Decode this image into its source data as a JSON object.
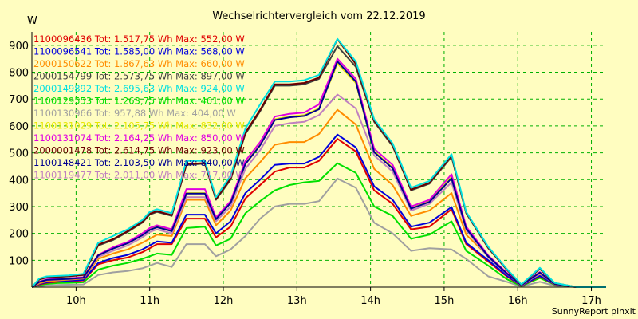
{
  "chart_data": {
    "type": "line",
    "title": "Wechselrichtervergleich vom 22.12.2019",
    "ylabel": "W",
    "xlabel": "",
    "ylim": [
      0,
      950
    ],
    "xlim": [
      9.4,
      17.2
    ],
    "yticks": [
      100,
      200,
      300,
      400,
      500,
      600,
      700,
      800,
      900
    ],
    "xticks": [
      {
        "v": 10,
        "label": "10h"
      },
      {
        "v": 11,
        "label": "11h"
      },
      {
        "v": 12,
        "label": "12h"
      },
      {
        "v": 13,
        "label": "13h"
      },
      {
        "v": 14,
        "label": "14h"
      },
      {
        "v": 15,
        "label": "15h"
      },
      {
        "v": 16,
        "label": "16h"
      },
      {
        "v": 17,
        "label": "17h"
      }
    ],
    "grid": true,
    "x": [
      9.4,
      9.5,
      9.6,
      9.75,
      9.9,
      10.1,
      10.3,
      10.5,
      10.7,
      10.9,
      11.0,
      11.1,
      11.3,
      11.5,
      11.75,
      11.9,
      12.1,
      12.3,
      12.5,
      12.7,
      12.9,
      13.1,
      13.3,
      13.55,
      13.8,
      14.05,
      14.3,
      14.55,
      14.8,
      15.1,
      15.3,
      15.6,
      15.85,
      16.05,
      16.3,
      16.5,
      16.8,
      17.0,
      17.2
    ],
    "series": [
      {
        "name": "1100096436",
        "total": "Tot: 1.517,75 Wh",
        "max": "Max: 552,00 W",
        "color": "#e00000",
        "values": [
          0,
          10,
          16,
          20,
          22,
          25,
          85,
          100,
          110,
          130,
          145,
          160,
          160,
          255,
          255,
          185,
          225,
          330,
          380,
          430,
          445,
          445,
          470,
          552,
          505,
          360,
          310,
          215,
          225,
          290,
          160,
          95,
          40,
          5,
          40,
          10,
          0,
          0,
          0
        ]
      },
      {
        "name": "1100096541",
        "total": "Tot: 1.585,00 Wh",
        "max": "Max: 568,00 W",
        "color": "#0000dd",
        "values": [
          0,
          12,
          18,
          22,
          24,
          27,
          90,
          108,
          120,
          140,
          155,
          170,
          165,
          270,
          270,
          200,
          245,
          350,
          400,
          455,
          460,
          460,
          485,
          568,
          520,
          375,
          325,
          225,
          240,
          298,
          165,
          100,
          43,
          6,
          42,
          11,
          0,
          0,
          0
        ]
      },
      {
        "name": "2000150622",
        "total": "Tot: 1.867,63 Wh",
        "max": "Max: 660,00 W",
        "color": "#ff8c00",
        "values": [
          0,
          14,
          21,
          25,
          28,
          32,
          105,
          125,
          140,
          165,
          180,
          195,
          190,
          325,
          325,
          230,
          285,
          405,
          465,
          530,
          540,
          540,
          570,
          660,
          605,
          440,
          380,
          265,
          285,
          350,
          195,
          115,
          50,
          7,
          50,
          13,
          0,
          0,
          0
        ]
      },
      {
        "name": "2000154799",
        "total": "Tot: 2.573,75 Wh",
        "max": "Max: 897,00 W",
        "color": "#404040",
        "values": [
          0,
          28,
          36,
          38,
          40,
          45,
          155,
          175,
          205,
          240,
          270,
          280,
          265,
          455,
          460,
          325,
          400,
          570,
          655,
          750,
          750,
          755,
          775,
          897,
          820,
          615,
          525,
          360,
          385,
          485,
          275,
          145,
          65,
          9,
          68,
          15,
          0,
          0,
          0
        ]
      },
      {
        "name": "2000149892",
        "total": "Tot: 2.695,63 Wh",
        "max": "Max: 924,00 W",
        "color": "#00e0e0",
        "values": [
          0,
          32,
          40,
          42,
          44,
          50,
          165,
          190,
          215,
          250,
          280,
          290,
          275,
          470,
          470,
          335,
          415,
          590,
          680,
          765,
          765,
          770,
          790,
          924,
          840,
          625,
          535,
          370,
          395,
          495,
          280,
          150,
          68,
          10,
          72,
          16,
          0,
          0,
          0
        ]
      },
      {
        "name": "1100129553",
        "total": "Tot: 1.263,75 Wh",
        "max": "Max: 461,00 W",
        "color": "#00e000",
        "values": [
          0,
          8,
          12,
          15,
          16,
          18,
          65,
          80,
          90,
          105,
          115,
          125,
          120,
          220,
          225,
          155,
          180,
          275,
          320,
          360,
          380,
          390,
          395,
          461,
          425,
          300,
          265,
          180,
          195,
          245,
          135,
          80,
          30,
          4,
          34,
          9,
          0,
          0,
          0
        ]
      },
      {
        "name": "1100130966",
        "total": "Tot: 957,88 Wh",
        "max": "Max: 404,00 W",
        "color": "#a0a0a0",
        "values": [
          0,
          4,
          6,
          8,
          9,
          10,
          45,
          55,
          60,
          70,
          80,
          90,
          75,
          160,
          160,
          115,
          140,
          190,
          255,
          300,
          310,
          310,
          320,
          404,
          370,
          240,
          200,
          135,
          145,
          140,
          105,
          40,
          20,
          2,
          20,
          5,
          0,
          0,
          0
        ]
      },
      {
        "name": "1100131029",
        "total": "Tot: 2.105,75 Wh",
        "max": "Max: 832,00 W",
        "color": "#e8e800",
        "values": [
          0,
          20,
          28,
          30,
          32,
          36,
          120,
          145,
          165,
          195,
          215,
          225,
          210,
          350,
          350,
          255,
          315,
          460,
          530,
          625,
          635,
          640,
          665,
          832,
          760,
          505,
          445,
          295,
          320,
          410,
          220,
          115,
          52,
          7,
          55,
          12,
          0,
          0,
          0
        ]
      },
      {
        "name": "1100131074",
        "total": "Tot: 2.164,25 Wh",
        "max": "Max: 850,00 W",
        "color": "#e000e0",
        "values": [
          0,
          20,
          29,
          31,
          33,
          37,
          120,
          148,
          168,
          200,
          220,
          230,
          215,
          365,
          365,
          260,
          320,
          470,
          540,
          635,
          645,
          650,
          680,
          850,
          775,
          515,
          455,
          300,
          325,
          420,
          225,
          118,
          54,
          7,
          56,
          13,
          0,
          0,
          0
        ]
      },
      {
        "name": "2000001478",
        "total": "Tot: 2.614,75 Wh",
        "max": "Max: 923,00 W",
        "color": "#6a0000",
        "values": [
          0,
          29,
          37,
          39,
          41,
          46,
          158,
          178,
          208,
          243,
          273,
          283,
          268,
          458,
          462,
          328,
          405,
          575,
          660,
          755,
          755,
          760,
          780,
          923,
          830,
          620,
          530,
          363,
          388,
          490,
          278,
          147,
          66,
          9,
          70,
          15,
          0,
          0,
          0
        ]
      },
      {
        "name": "1100148421",
        "total": "Tot: 2.103,50 Wh",
        "max": "Max: 840,00 W",
        "color": "#000090",
        "values": [
          0,
          19,
          27,
          29,
          31,
          35,
          118,
          143,
          163,
          193,
          213,
          223,
          208,
          348,
          348,
          253,
          313,
          458,
          528,
          622,
          632,
          637,
          662,
          840,
          765,
          502,
          442,
          292,
          317,
          405,
          218,
          114,
          51,
          7,
          54,
          12,
          0,
          0,
          0
        ]
      },
      {
        "name": "1100119477",
        "total": "Tot: 2.011,00 Wh",
        "max": "Max: 717,00 W",
        "color": "#c080c0",
        "values": [
          0,
          18,
          26,
          28,
          30,
          34,
          112,
          135,
          155,
          185,
          205,
          215,
          200,
          335,
          335,
          245,
          300,
          440,
          510,
          600,
          610,
          615,
          640,
          717,
          665,
          490,
          430,
          285,
          310,
          390,
          212,
          110,
          50,
          6,
          52,
          11,
          0,
          0,
          0
        ]
      }
    ]
  },
  "footer": "SunnyReport pinxit"
}
